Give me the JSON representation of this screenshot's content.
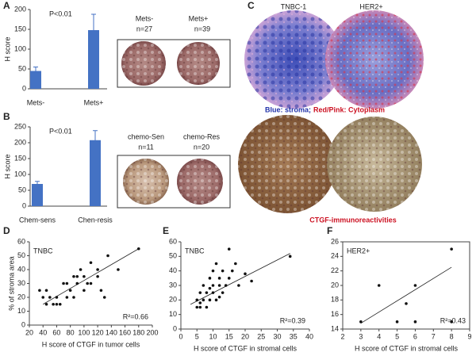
{
  "panel_labels": [
    "A",
    "B",
    "C",
    "D",
    "E",
    "F"
  ],
  "image_texts": [
    "Mets-",
    "n=27",
    "Mets+",
    "n=39",
    "chemo-Sen",
    "n=11",
    "chemo-Res",
    "n=20",
    "TNBC-1",
    "HER2+",
    "Blue: stroma;",
    "Red/Pink: Cytoplasm",
    "CTGF-immunoreactivities"
  ],
  "chart_data": [
    {
      "type": "bar",
      "ylabel": "H score",
      "annotation": "P<0.01",
      "categories": [
        "Mets-",
        "Mets+"
      ],
      "values": [
        45,
        148
      ],
      "errors": [
        10,
        40
      ],
      "color": "#4472c4",
      "ylim": [
        0,
        200
      ],
      "yticks": [
        0,
        50,
        100,
        150,
        200
      ]
    },
    {
      "type": "bar",
      "ylabel": "H score",
      "annotation": "P<0.01",
      "categories": [
        "Chem-sens",
        "Chen-resis"
      ],
      "values": [
        70,
        208
      ],
      "errors": [
        8,
        30
      ],
      "color": "#4472c4",
      "ylim": [
        0,
        250
      ],
      "yticks": [
        0,
        50,
        100,
        150,
        200,
        250
      ]
    },
    {
      "type": "scatter",
      "subtitle": "TNBC",
      "xlabel": "H score of CTGF in tumor cells",
      "ylabel": "% of stroma area",
      "annotation": "R²=0.66",
      "x": [
        35,
        40,
        45,
        45,
        50,
        55,
        60,
        60,
        65,
        70,
        75,
        75,
        80,
        85,
        85,
        90,
        90,
        95,
        100,
        100,
        105,
        110,
        110,
        120,
        120,
        125,
        130,
        135,
        150,
        180
      ],
      "y": [
        25,
        20,
        25,
        15,
        20,
        15,
        20,
        15,
        15,
        30,
        20,
        30,
        25,
        35,
        20,
        30,
        35,
        40,
        35,
        25,
        30,
        30,
        45,
        40,
        35,
        25,
        20,
        50,
        40,
        55
      ],
      "color": "#111",
      "xlim": [
        20,
        200
      ],
      "xticks": [
        20,
        40,
        60,
        80,
        100,
        120,
        140,
        160,
        180,
        200
      ],
      "ylim": [
        0,
        60
      ],
      "yticks": [
        0,
        10,
        20,
        30,
        40,
        50,
        60
      ],
      "trendline": {
        "x": [
          40,
          180
        ],
        "y": [
          15,
          55
        ]
      }
    },
    {
      "type": "scatter",
      "subtitle": "TNBC",
      "xlabel": "H score of CTGF in stromal cells",
      "annotation": "R²=0.39",
      "x": [
        5,
        5,
        6,
        6,
        7,
        7,
        8,
        8,
        9,
        9,
        10,
        10,
        10,
        11,
        11,
        12,
        12,
        13,
        13,
        14,
        15,
        15,
        16,
        17,
        18,
        20,
        22,
        34,
        6,
        9,
        12
      ],
      "y": [
        15,
        20,
        15,
        25,
        20,
        30,
        15,
        25,
        20,
        35,
        40,
        30,
        25,
        45,
        20,
        35,
        30,
        40,
        25,
        30,
        55,
        35,
        40,
        45,
        30,
        38,
        33,
        50,
        18,
        28,
        22
      ],
      "color": "#111",
      "xlim": [
        0,
        40
      ],
      "xticks": [
        0,
        5,
        10,
        15,
        20,
        25,
        30,
        35,
        40
      ],
      "ylim": [
        0,
        60
      ],
      "yticks": [
        0,
        10,
        20,
        30,
        40,
        50,
        60
      ],
      "trendline": {
        "x": [
          3,
          34
        ],
        "y": [
          17,
          52
        ]
      }
    },
    {
      "type": "scatter",
      "subtitle": "HER2+",
      "xlabel": "H score of CTGF in stromal cells",
      "annotation": "R²=0.43",
      "x": [
        3,
        4,
        5,
        5.5,
        6,
        6,
        8,
        8
      ],
      "y": [
        15,
        20,
        15,
        17.5,
        20,
        15,
        25,
        15
      ],
      "color": "#111",
      "xlim": [
        2,
        9
      ],
      "xticks": [
        2,
        3,
        4,
        5,
        6,
        7,
        8,
        9
      ],
      "ylim": [
        14,
        26
      ],
      "yticks": [
        14,
        16,
        18,
        20,
        22,
        24,
        26
      ],
      "trendline": {
        "x": [
          3,
          8
        ],
        "y": [
          14.8,
          22.5
        ]
      }
    }
  ]
}
